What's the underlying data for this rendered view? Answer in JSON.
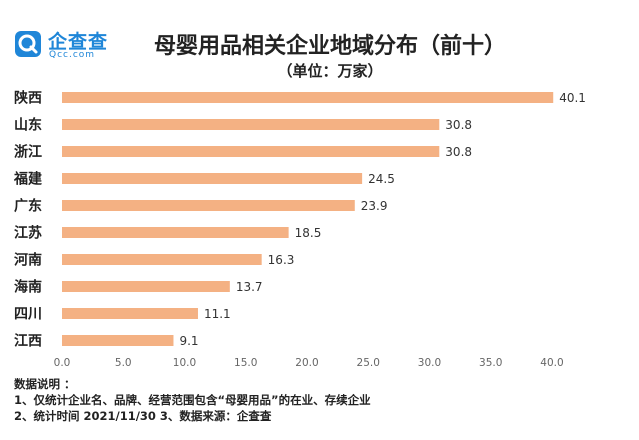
{
  "logo": {
    "name": "企查查",
    "domain": "Qcc.com",
    "brand_color": "#1f86d8"
  },
  "header": {
    "title": "母婴用品相关企业地域分布（前十）",
    "subtitle": "（单位：万家）"
  },
  "notes": {
    "heading": "数据说明 ：",
    "line1": "1、仅统计企业名、品牌、经营范围包含“母婴用品”的在业、存续企业",
    "line2": "2、统计时间  2021/11/30      3、数据来源：企查查"
  },
  "chart_data": {
    "type": "bar",
    "orientation": "horizontal",
    "categories": [
      "陕西",
      "山东",
      "浙江",
      "福建",
      "广东",
      "江苏",
      "河南",
      "海南",
      "四川",
      "江西"
    ],
    "values": [
      40.1,
      30.8,
      30.8,
      24.5,
      23.9,
      18.5,
      16.3,
      13.7,
      11.1,
      9.1
    ],
    "value_labels": [
      "40.1",
      "30.8",
      "30.8",
      "24.5",
      "23.9",
      "18.5",
      "16.3",
      "13.7",
      "11.1",
      "9.1"
    ],
    "xlim": [
      0,
      40
    ],
    "xticks": [
      "0.0",
      "5.0",
      "10.0",
      "15.0",
      "20.0",
      "25.0",
      "30.0",
      "35.0",
      "40.0"
    ],
    "bar_color": "#f4b183",
    "grid": false,
    "legend": "none"
  }
}
